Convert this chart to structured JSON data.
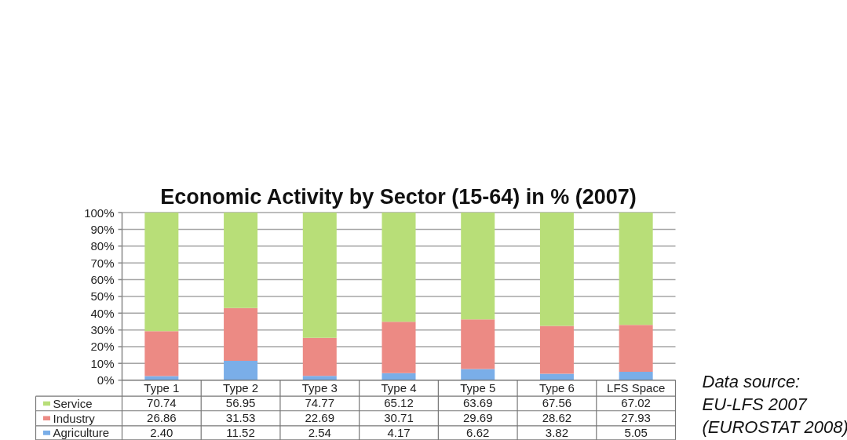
{
  "chart_data": {
    "type": "bar",
    "title": "Economic Activity by Sector (15-64) in % (2007)",
    "stacked": true,
    "categories": [
      "Type 1",
      "Type 2",
      "Type 3",
      "Type 4",
      "Type 5",
      "Type 6",
      "LFS Space"
    ],
    "series": [
      {
        "name": "Agriculture",
        "color": "#7aaee8",
        "values": [
          2.4,
          11.52,
          2.54,
          4.17,
          6.62,
          3.82,
          5.05
        ],
        "value_labels": [
          "2.40",
          "11.52",
          "2.54",
          "4.17",
          "6.62",
          "3.82",
          "5.05"
        ]
      },
      {
        "name": "Industry",
        "color": "#ec8a84",
        "values": [
          26.86,
          31.53,
          22.69,
          30.71,
          29.69,
          28.62,
          27.93
        ],
        "value_labels": [
          "26.86",
          "31.53",
          "22.69",
          "30.71",
          "29.69",
          "28.62",
          "27.93"
        ]
      },
      {
        "name": "Service",
        "color": "#b8de78",
        "values": [
          70.74,
          56.95,
          74.77,
          65.12,
          63.69,
          67.56,
          67.02
        ],
        "value_labels": [
          "70.74",
          "56.95",
          "74.77",
          "65.12",
          "63.69",
          "67.56",
          "67.02"
        ]
      }
    ],
    "ylim": [
      0,
      100
    ],
    "yticks": [
      {
        "value": 0,
        "label": "0%"
      },
      {
        "value": 10,
        "label": "10%"
      },
      {
        "value": 20,
        "label": "20%"
      },
      {
        "value": 30,
        "label": "30%"
      },
      {
        "value": 40,
        "label": "40%"
      },
      {
        "value": 50,
        "label": "50%"
      },
      {
        "value": 60,
        "label": "60%"
      },
      {
        "value": 70,
        "label": "70%"
      },
      {
        "value": 80,
        "label": "80%"
      },
      {
        "value": 90,
        "label": "90%"
      },
      {
        "value": 100,
        "label": "100%"
      }
    ],
    "grid": "y",
    "legend": "bottom",
    "annotations": [
      "Data source:\nEU-LFS 2007\n(EUROSTAT 2008)"
    ]
  }
}
